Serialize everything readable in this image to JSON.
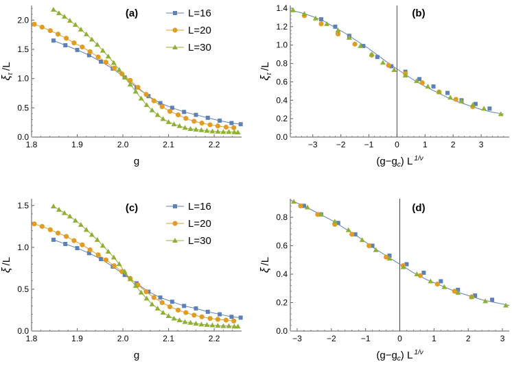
{
  "colors": {
    "L16": "#5d80b6",
    "L20": "#e19c24",
    "L30": "#8fb031",
    "axis": "#000000",
    "fit_line": "#5d80b6"
  },
  "legend": {
    "entries": [
      {
        "key": "L16",
        "label": "L=16",
        "marker": "square"
      },
      {
        "key": "L20",
        "label": "L=20",
        "marker": "circle"
      },
      {
        "key": "L30",
        "label": "L=30",
        "marker": "triangle"
      }
    ]
  },
  "chart_data": [
    {
      "id": "a",
      "panel_label": "(a)",
      "type": "scatter",
      "xlabel": "g",
      "ylabel": "ξτ/L",
      "ylabel_main": "ξ",
      "ylabel_sub": "τ",
      "ylabel_tail": "/L",
      "xlim": [
        1.8,
        2.26
      ],
      "ylim": [
        0,
        2.25
      ],
      "xticks": [
        1.8,
        1.9,
        2.0,
        2.1,
        2.2
      ],
      "xtick_labels": [
        "1.8",
        "1.9",
        "2.0",
        "2.1",
        "2.2"
      ],
      "yticks": [
        0,
        0.5,
        1.0,
        1.5,
        2.0
      ],
      "ytick_labels": [
        "0.0",
        "0.5",
        "1.0",
        "1.5",
        "2.0"
      ],
      "legend_shown": true,
      "vline": null,
      "series": [
        {
          "key": "L16",
          "name": "L=16",
          "x": [
            1.848,
            1.874,
            1.9,
            1.926,
            1.952,
            1.978,
            2.004,
            2.03,
            2.056,
            2.082,
            2.108,
            2.134,
            2.16,
            2.186,
            2.212,
            2.238,
            2.258
          ],
          "y": [
            1.65,
            1.57,
            1.49,
            1.4,
            1.29,
            1.17,
            1.02,
            0.85,
            0.7,
            0.58,
            0.5,
            0.43,
            0.38,
            0.33,
            0.28,
            0.24,
            0.22
          ]
        },
        {
          "key": "L20",
          "name": "L=20",
          "x": [
            1.806,
            1.823,
            1.841,
            1.858,
            1.876,
            1.893,
            1.911,
            1.928,
            1.946,
            1.963,
            1.981,
            1.998,
            2.016,
            2.033,
            2.051,
            2.068,
            2.086,
            2.103,
            2.121,
            2.138,
            2.156,
            2.173,
            2.191,
            2.208,
            2.226,
            2.243
          ],
          "y": [
            1.93,
            1.88,
            1.82,
            1.76,
            1.69,
            1.61,
            1.54,
            1.46,
            1.37,
            1.28,
            1.18,
            1.08,
            0.97,
            0.85,
            0.73,
            0.62,
            0.52,
            0.44,
            0.38,
            0.32,
            0.27,
            0.24,
            0.21,
            0.19,
            0.17,
            0.16
          ]
        },
        {
          "key": "L30",
          "name": "L=30",
          "x": [
            1.848,
            1.86,
            1.872,
            1.884,
            1.896,
            1.908,
            1.92,
            1.932,
            1.944,
            1.956,
            1.968,
            1.98,
            1.992,
            2.004,
            2.016,
            2.028,
            2.04,
            2.052,
            2.064,
            2.076,
            2.088,
            2.1,
            2.112,
            2.124,
            2.136,
            2.148,
            2.16,
            2.172,
            2.184,
            2.196,
            2.208,
            2.22,
            2.232,
            2.244,
            2.252
          ],
          "y": [
            2.18,
            2.12,
            2.06,
            1.99,
            1.92,
            1.84,
            1.76,
            1.67,
            1.58,
            1.48,
            1.38,
            1.27,
            1.15,
            1.02,
            0.9,
            0.78,
            0.66,
            0.55,
            0.46,
            0.38,
            0.31,
            0.26,
            0.22,
            0.19,
            0.16,
            0.14,
            0.13,
            0.12,
            0.11,
            0.1,
            0.095,
            0.09,
            0.09,
            0.085,
            0.08
          ]
        }
      ]
    },
    {
      "id": "b",
      "panel_label": "(b)",
      "type": "scatter",
      "xlabel": "(g−gc) L1/ν",
      "xlabel_pre": "(g−g",
      "xlabel_sub": "c",
      "xlabel_mid": ") L",
      "xlabel_sup": "1/ν",
      "ylabel": "ξτ/L",
      "ylabel_main": "ξ",
      "ylabel_sub": "τ",
      "ylabel_tail": "/L",
      "xlim": [
        -3.8,
        4.0
      ],
      "ylim": [
        0,
        1.43
      ],
      "xticks": [
        -3,
        -2,
        -1,
        0,
        1,
        2,
        3
      ],
      "xtick_labels": [
        "−3",
        "−2",
        "−1",
        "0",
        "1",
        "2",
        "3"
      ],
      "yticks": [
        0,
        0.2,
        0.4,
        0.6,
        0.8,
        1.0,
        1.2,
        1.4
      ],
      "ytick_labels": [
        "0.0",
        "0.2",
        "0.4",
        "0.6",
        "0.8",
        "1.0",
        "1.2",
        "1.4"
      ],
      "legend_shown": false,
      "vline": 0,
      "fit": {
        "x": [
          -3.8,
          -3.4,
          -3.0,
          -2.6,
          -2.2,
          -1.8,
          -1.4,
          -1.0,
          -0.6,
          -0.2,
          0.2,
          0.6,
          1.0,
          1.4,
          1.8,
          2.2,
          2.6,
          3.0,
          3.4,
          3.8
        ],
        "y": [
          1.38,
          1.35,
          1.31,
          1.26,
          1.19,
          1.12,
          1.04,
          0.96,
          0.87,
          0.78,
          0.7,
          0.62,
          0.55,
          0.49,
          0.43,
          0.38,
          0.34,
          0.3,
          0.27,
          0.25
        ]
      },
      "series": [
        {
          "key": "L16",
          "name": "L=16",
          "x": [
            -2.7,
            -2.2,
            -1.7,
            -1.2,
            -0.7,
            -0.2,
            0.3,
            0.8,
            1.3,
            1.8,
            2.3,
            2.8,
            3.3
          ],
          "y": [
            1.28,
            1.2,
            1.1,
            0.99,
            0.87,
            0.77,
            0.71,
            0.63,
            0.55,
            0.48,
            0.4,
            0.36,
            0.31
          ]
        },
        {
          "key": "L20",
          "name": "L=20",
          "x": [
            -3.3,
            -2.7,
            -2.1,
            -1.5,
            -0.9,
            -0.3,
            0.3,
            0.9,
            1.5,
            2.1,
            2.7
          ],
          "y": [
            1.32,
            1.23,
            1.12,
            1.01,
            0.89,
            0.78,
            0.69,
            0.59,
            0.49,
            0.41,
            0.33
          ]
        },
        {
          "key": "L30",
          "name": "L=30",
          "x": [
            -3.7,
            -3.3,
            -2.9,
            -2.5,
            -2.1,
            -1.7,
            -1.3,
            -0.9,
            -0.5,
            -0.1,
            0.3,
            0.7,
            1.1,
            1.5,
            1.9,
            2.3,
            2.7,
            3.1,
            3.7
          ],
          "y": [
            1.38,
            1.34,
            1.29,
            1.23,
            1.16,
            1.08,
            0.99,
            0.9,
            0.81,
            0.73,
            0.67,
            0.61,
            0.55,
            0.49,
            0.43,
            0.39,
            0.35,
            0.31,
            0.25
          ]
        }
      ]
    },
    {
      "id": "c",
      "panel_label": "(c)",
      "type": "scatter",
      "xlabel": "g",
      "ylabel": "ξ/L",
      "ylabel_main": "ξ",
      "ylabel_sub": "",
      "ylabel_tail": "/L",
      "xlim": [
        1.8,
        2.26
      ],
      "ylim": [
        0,
        1.58
      ],
      "xticks": [
        1.8,
        1.9,
        2.0,
        2.1,
        2.2
      ],
      "xtick_labels": [
        "1.8",
        "1.9",
        "2.0",
        "2.1",
        "2.2"
      ],
      "yticks": [
        0,
        0.5,
        1.0,
        1.5
      ],
      "ytick_labels": [
        "0.0",
        "0.5",
        "1.0",
        "1.5"
      ],
      "legend_shown": true,
      "vline": null,
      "series": [
        {
          "key": "L16",
          "name": "L=16",
          "x": [
            1.848,
            1.874,
            1.9,
            1.926,
            1.952,
            1.978,
            2.004,
            2.03,
            2.056,
            2.082,
            2.108,
            2.134,
            2.16,
            2.186,
            2.212,
            2.238,
            2.258
          ],
          "y": [
            1.09,
            1.04,
            0.99,
            0.93,
            0.86,
            0.77,
            0.67,
            0.57,
            0.47,
            0.4,
            0.35,
            0.3,
            0.27,
            0.23,
            0.2,
            0.17,
            0.16
          ]
        },
        {
          "key": "L20",
          "name": "L=20",
          "x": [
            1.806,
            1.823,
            1.841,
            1.858,
            1.876,
            1.893,
            1.911,
            1.928,
            1.946,
            1.963,
            1.981,
            1.998,
            2.016,
            2.033,
            2.051,
            2.068,
            2.086,
            2.103,
            2.121,
            2.138,
            2.156,
            2.173,
            2.191,
            2.208,
            2.226,
            2.243
          ],
          "y": [
            1.28,
            1.25,
            1.21,
            1.17,
            1.13,
            1.08,
            1.03,
            0.97,
            0.91,
            0.85,
            0.78,
            0.71,
            0.63,
            0.55,
            0.47,
            0.4,
            0.34,
            0.29,
            0.25,
            0.22,
            0.19,
            0.17,
            0.15,
            0.14,
            0.13,
            0.12
          ]
        },
        {
          "key": "L30",
          "name": "L=30",
          "x": [
            1.848,
            1.86,
            1.872,
            1.884,
            1.896,
            1.908,
            1.92,
            1.932,
            1.944,
            1.956,
            1.968,
            1.98,
            1.992,
            2.004,
            2.016,
            2.028,
            2.04,
            2.052,
            2.064,
            2.076,
            2.088,
            2.1,
            2.112,
            2.124,
            2.136,
            2.148,
            2.16,
            2.172,
            2.184,
            2.196,
            2.208,
            2.22,
            2.232,
            2.244,
            2.252
          ],
          "y": [
            1.49,
            1.45,
            1.41,
            1.37,
            1.32,
            1.27,
            1.21,
            1.15,
            1.09,
            1.02,
            0.95,
            0.88,
            0.8,
            0.71,
            0.62,
            0.54,
            0.46,
            0.39,
            0.32,
            0.27,
            0.22,
            0.18,
            0.15,
            0.13,
            0.11,
            0.1,
            0.09,
            0.08,
            0.075,
            0.07,
            0.065,
            0.06,
            0.06,
            0.055,
            0.055
          ]
        }
      ]
    },
    {
      "id": "d",
      "panel_label": "(d)",
      "type": "scatter",
      "xlabel": "(g−gc) L1/ν",
      "xlabel_pre": "(g−g",
      "xlabel_sub": "c",
      "xlabel_mid": ") L",
      "xlabel_sup": "1/ν",
      "ylabel": "ξ/L",
      "ylabel_main": "ξ",
      "ylabel_sub": "",
      "ylabel_tail": "/L",
      "xlim": [
        -3.2,
        3.2
      ],
      "ylim": [
        0,
        0.93
      ],
      "xticks": [
        -3,
        -2,
        -1,
        0,
        1,
        2,
        3
      ],
      "xtick_labels": [
        "−3",
        "−2",
        "−1",
        "0",
        "1",
        "2",
        "3"
      ],
      "yticks": [
        0,
        0.2,
        0.4,
        0.6,
        0.8
      ],
      "ytick_labels": [
        "0.0",
        "0.2",
        "0.4",
        "0.6",
        "0.8"
      ],
      "legend_shown": false,
      "vline": 0,
      "fit": {
        "x": [
          -3.2,
          -2.8,
          -2.4,
          -2.0,
          -1.6,
          -1.2,
          -0.8,
          -0.4,
          0.0,
          0.4,
          0.8,
          1.2,
          1.6,
          2.0,
          2.4,
          2.8,
          3.2
        ],
        "y": [
          0.92,
          0.88,
          0.83,
          0.78,
          0.72,
          0.66,
          0.59,
          0.53,
          0.47,
          0.41,
          0.36,
          0.32,
          0.28,
          0.25,
          0.22,
          0.2,
          0.18
        ]
      },
      "series": [
        {
          "key": "L16",
          "name": "L=16",
          "x": [
            -2.8,
            -2.3,
            -1.8,
            -1.3,
            -0.8,
            -0.3,
            0.2,
            0.7,
            1.2,
            1.7,
            2.2,
            2.7
          ],
          "y": [
            0.88,
            0.82,
            0.76,
            0.68,
            0.6,
            0.53,
            0.47,
            0.41,
            0.35,
            0.29,
            0.25,
            0.22
          ]
        },
        {
          "key": "L20",
          "name": "L=20",
          "x": [
            -2.9,
            -2.4,
            -1.9,
            -1.4,
            -0.9,
            -0.4,
            0.1,
            0.6,
            1.1,
            1.6,
            2.1
          ],
          "y": [
            0.88,
            0.82,
            0.75,
            0.68,
            0.6,
            0.52,
            0.46,
            0.39,
            0.33,
            0.28,
            0.24
          ]
        },
        {
          "key": "L30",
          "name": "L=30",
          "x": [
            -3.1,
            -2.7,
            -2.3,
            -1.9,
            -1.5,
            -1.1,
            -0.7,
            -0.3,
            0.1,
            0.5,
            0.9,
            1.3,
            1.7,
            2.1,
            2.5,
            3.1
          ],
          "y": [
            0.91,
            0.87,
            0.82,
            0.77,
            0.71,
            0.64,
            0.57,
            0.51,
            0.45,
            0.4,
            0.35,
            0.31,
            0.27,
            0.24,
            0.21,
            0.18
          ]
        }
      ]
    }
  ]
}
